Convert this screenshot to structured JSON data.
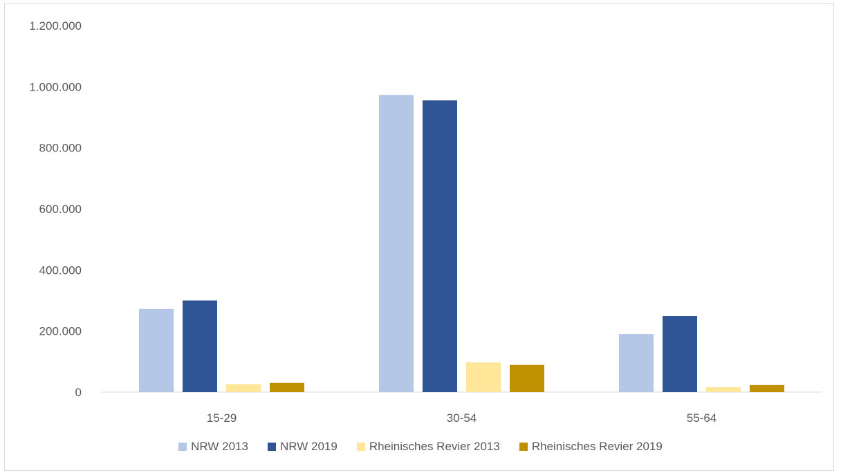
{
  "chart_data": {
    "type": "bar",
    "categories": [
      "15-29",
      "30-54",
      "55-64"
    ],
    "series": [
      {
        "name": "NRW 2013",
        "color": "#b4c7e7",
        "values": [
          272000,
          973000,
          190000
        ]
      },
      {
        "name": "NRW 2019",
        "color": "#2f5597",
        "values": [
          300000,
          955000,
          249000
        ]
      },
      {
        "name": "Rheinisches Revier 2013",
        "color": "#ffe699",
        "values": [
          26000,
          97000,
          16000
        ]
      },
      {
        "name": "Rheinisches Revier 2019",
        "color": "#bf9000",
        "values": [
          30000,
          89000,
          23000
        ]
      }
    ],
    "ylim": [
      0,
      1200000
    ],
    "yticks": [
      0,
      200000,
      400000,
      600000,
      800000,
      1000000,
      1200000
    ],
    "ytick_labels": [
      "0",
      "200.000",
      "400.000",
      "600.000",
      "800.000",
      "1.000.000",
      "1.200.000"
    ],
    "grid": false,
    "legend_position": "bottom"
  }
}
